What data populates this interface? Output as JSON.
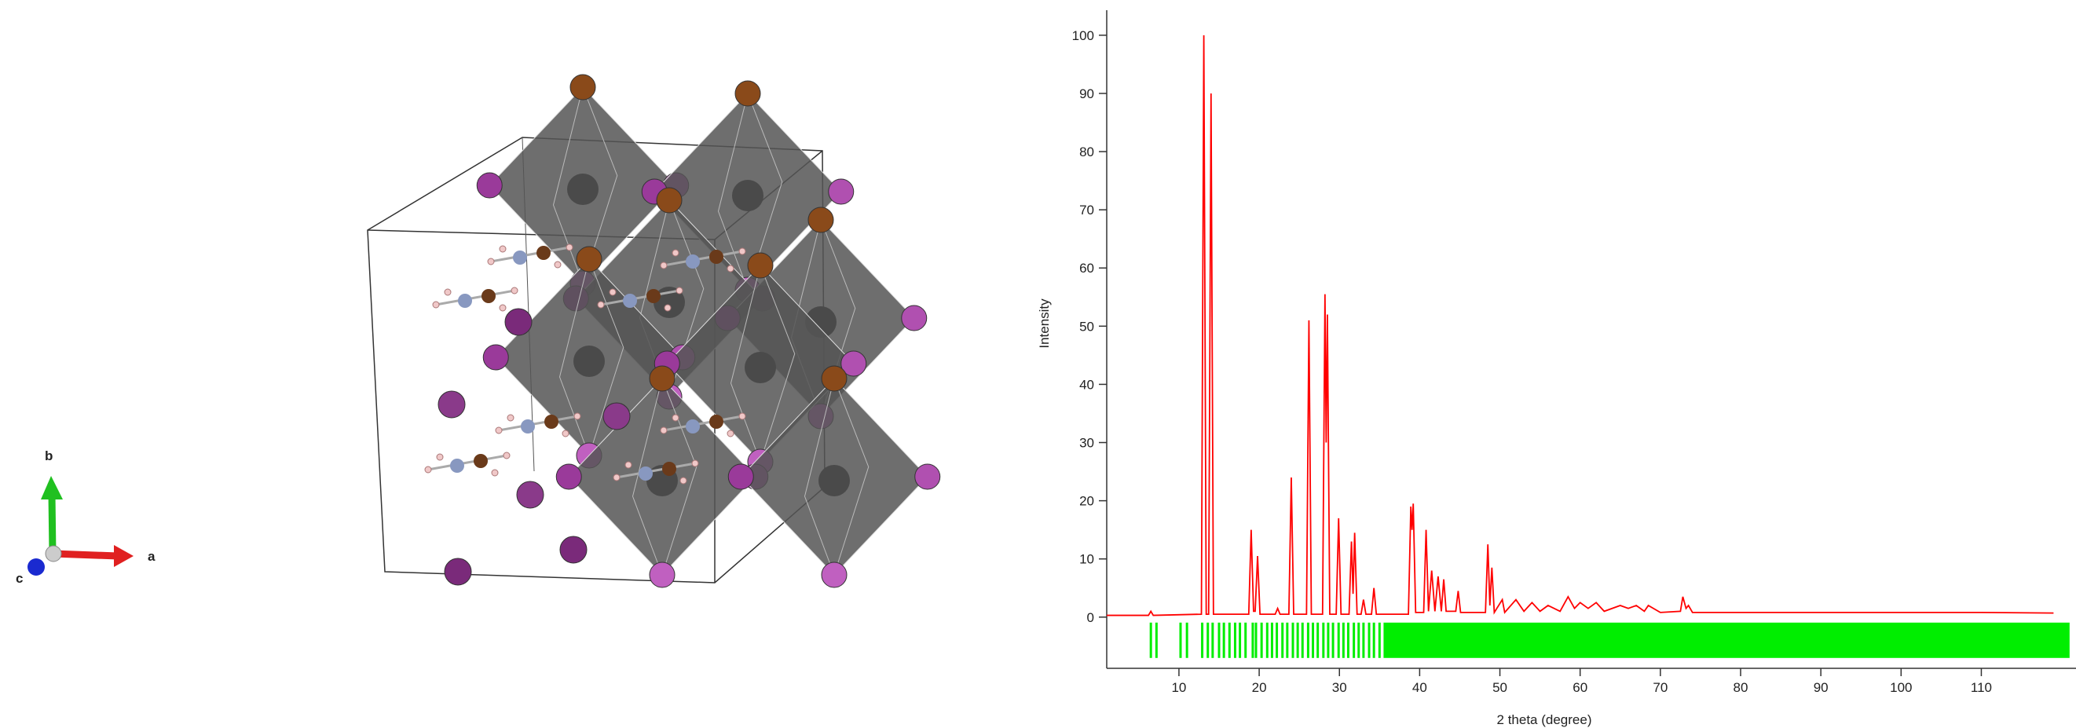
{
  "structure": {
    "axes": [
      "a",
      "b",
      "c"
    ]
  },
  "chart_data": {
    "type": "line",
    "x_label": "2 theta (degree)",
    "y_label": "Intensity",
    "x": [
      1,
      6.2,
      6.5,
      6.8,
      12.8,
      13.1,
      13.4,
      13.7,
      14.0,
      14.3,
      18.7,
      19.0,
      19.3,
      19.5,
      19.8,
      20.1,
      22,
      22.3,
      22.6,
      23.7,
      24.0,
      24.3,
      25.9,
      26.2,
      26.5,
      27.9,
      28.2,
      28.35,
      28.5,
      28.8,
      29.6,
      29.9,
      30.2,
      31.2,
      31.5,
      31.7,
      31.9,
      32.2,
      32.7,
      33,
      33.3,
      34,
      34.3,
      34.6,
      38.6,
      38.9,
      39.05,
      39.2,
      39.5,
      40.5,
      40.8,
      41.1,
      41.5,
      41.9,
      42.3,
      42.7,
      43,
      43.3,
      44.5,
      44.8,
      45.1,
      48.2,
      48.5,
      48.75,
      49,
      49.3,
      50.3,
      50.6,
      52,
      53,
      54,
      55,
      56,
      57.5,
      58.5,
      59.3,
      60,
      61,
      62,
      63,
      65,
      66,
      67,
      68,
      68.5,
      70,
      72.5,
      72.8,
      73.2,
      73.5,
      74,
      80,
      90,
      100,
      110,
      119
    ],
    "series": [
      {
        "color": "#ff0000",
        "values": [
          0.3,
          0.3,
          1,
          0.3,
          0.5,
          100,
          0.5,
          0.5,
          90,
          0.5,
          0.5,
          15,
          1,
          1,
          10.5,
          0.5,
          0.5,
          1.5,
          0.5,
          0.5,
          24,
          0.5,
          0.5,
          51,
          0.5,
          0.5,
          55.5,
          30,
          52,
          0.5,
          0.5,
          17,
          0.5,
          0.5,
          13,
          4,
          14.5,
          0.5,
          0.5,
          3,
          0.5,
          0.5,
          5,
          0.5,
          0.5,
          19,
          15,
          19.5,
          0.8,
          0.8,
          15,
          1,
          8,
          1,
          7,
          1,
          6.5,
          1,
          1,
          4.5,
          0.8,
          0.8,
          12.5,
          2,
          8.5,
          0.8,
          3,
          0.8,
          3,
          1,
          2.5,
          1,
          2,
          1,
          3.5,
          1.5,
          2.5,
          1.5,
          2.5,
          1,
          2,
          1.5,
          2,
          1,
          2,
          0.8,
          1,
          3.5,
          1.5,
          2,
          0.8,
          0.8,
          0.8,
          0.8,
          0.8,
          0.7
        ]
      }
    ],
    "reflections": {
      "color": "#00ee00",
      "positions": [
        6.5,
        7.2,
        10.2,
        11,
        12.9,
        13.6,
        14.2,
        15,
        15.6,
        16.3,
        17,
        17.6,
        18.3,
        19.2,
        19.6,
        20.3,
        21,
        21.6,
        22.2,
        22.9,
        23.5,
        24.2,
        24.8,
        25.4,
        26.1,
        26.7,
        27.3,
        28,
        28.6,
        29.2,
        29.9,
        30.5,
        31.1,
        31.8,
        32.4,
        33,
        33.7,
        34.3,
        35
      ],
      "band": [
        35.5,
        121
      ]
    },
    "xlim": [
      1,
      121.8
    ],
    "ylim": [
      -8.8,
      104.3
    ],
    "xticks": [
      10,
      20,
      30,
      40,
      50,
      60,
      70,
      80,
      90,
      100,
      110
    ],
    "yticks": [
      0,
      10,
      20,
      30,
      40,
      50,
      60,
      70,
      80,
      90,
      100
    ]
  }
}
